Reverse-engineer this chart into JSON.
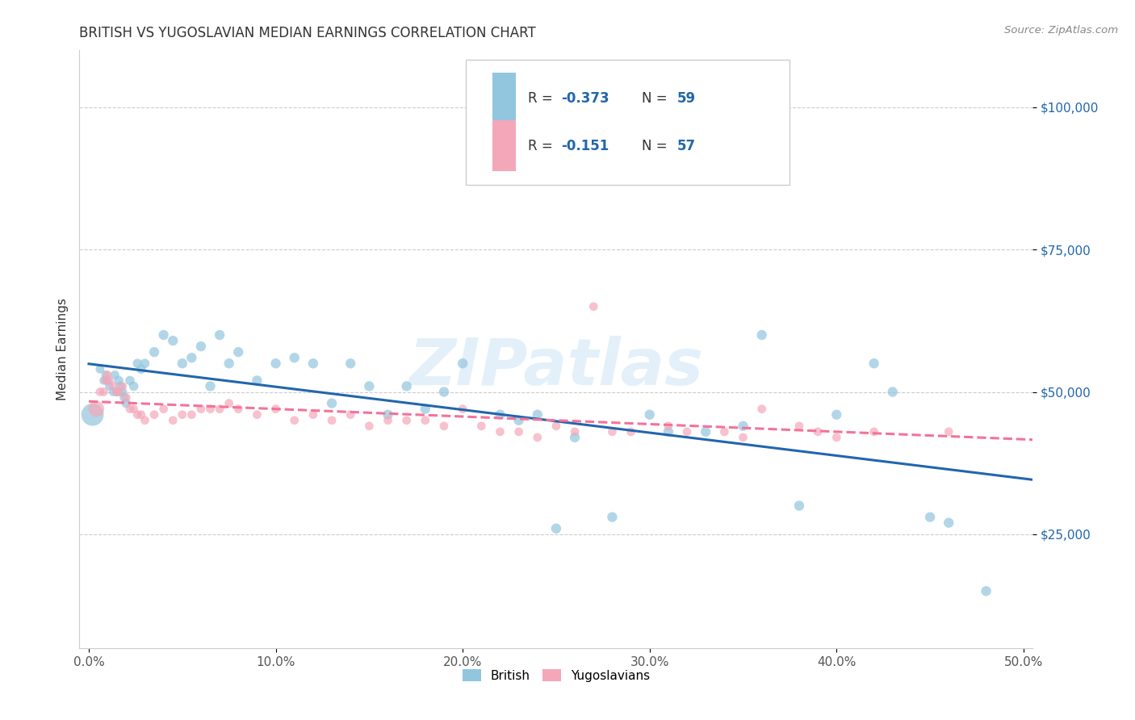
{
  "title": "BRITISH VS YUGOSLAVIAN MEDIAN EARNINGS CORRELATION CHART",
  "source": "Source: ZipAtlas.com",
  "ylabel": "Median Earnings",
  "xlim": [
    -0.005,
    0.505
  ],
  "ylim": [
    5000,
    110000
  ],
  "yticks": [
    25000,
    50000,
    75000,
    100000
  ],
  "ytick_labels": [
    "$25,000",
    "$50,000",
    "$75,000",
    "$100,000"
  ],
  "xticks": [
    0.0,
    0.1,
    0.2,
    0.3,
    0.4,
    0.5
  ],
  "xtick_labels": [
    "0.0%",
    "10.0%",
    "20.0%",
    "30.0%",
    "40.0%",
    "50.0%"
  ],
  "british_color": "#92c5de",
  "yugoslav_color": "#f4a7b9",
  "trend_blue": "#2166ac",
  "trend_pink": "#f4729a",
  "watermark": "ZIPatlas",
  "legend_R_british": "R = -0.373",
  "legend_N_british": "N = 59",
  "legend_R_yugoslav": "R = -0.151",
  "legend_N_yugoslav": "N = 57",
  "title_color": "#333333",
  "source_color": "#888888",
  "ylabel_color": "#333333",
  "ytick_color": "#2166ac",
  "xtick_color": "#555555",
  "british_x": [
    0.002,
    0.006,
    0.008,
    0.009,
    0.01,
    0.011,
    0.013,
    0.014,
    0.015,
    0.016,
    0.017,
    0.018,
    0.019,
    0.02,
    0.022,
    0.024,
    0.026,
    0.028,
    0.03,
    0.035,
    0.04,
    0.045,
    0.05,
    0.055,
    0.06,
    0.065,
    0.07,
    0.075,
    0.08,
    0.09,
    0.1,
    0.11,
    0.12,
    0.13,
    0.14,
    0.15,
    0.16,
    0.17,
    0.18,
    0.19,
    0.2,
    0.22,
    0.23,
    0.24,
    0.25,
    0.26,
    0.28,
    0.3,
    0.31,
    0.33,
    0.35,
    0.36,
    0.38,
    0.4,
    0.42,
    0.43,
    0.45,
    0.46,
    0.48
  ],
  "british_y": [
    46000,
    54000,
    52000,
    53000,
    52000,
    51000,
    50000,
    53000,
    50000,
    52000,
    51000,
    50000,
    49000,
    48000,
    52000,
    51000,
    55000,
    54000,
    55000,
    57000,
    60000,
    59000,
    55000,
    56000,
    58000,
    51000,
    60000,
    55000,
    57000,
    52000,
    55000,
    56000,
    55000,
    48000,
    55000,
    51000,
    46000,
    51000,
    47000,
    50000,
    55000,
    46000,
    45000,
    46000,
    26000,
    42000,
    28000,
    46000,
    43000,
    43000,
    44000,
    60000,
    30000,
    46000,
    55000,
    50000,
    28000,
    27000,
    15000
  ],
  "british_sizes": [
    400,
    60,
    60,
    60,
    60,
    60,
    60,
    60,
    70,
    70,
    70,
    70,
    70,
    70,
    70,
    70,
    70,
    70,
    70,
    80,
    80,
    80,
    80,
    80,
    80,
    80,
    80,
    80,
    80,
    80,
    80,
    80,
    80,
    80,
    80,
    80,
    80,
    80,
    80,
    80,
    80,
    80,
    80,
    80,
    80,
    80,
    80,
    80,
    80,
    80,
    80,
    80,
    80,
    80,
    80,
    80,
    80,
    80,
    80
  ],
  "yugoslav_x": [
    0.004,
    0.006,
    0.008,
    0.009,
    0.01,
    0.011,
    0.013,
    0.015,
    0.016,
    0.018,
    0.02,
    0.022,
    0.024,
    0.026,
    0.028,
    0.03,
    0.035,
    0.04,
    0.045,
    0.05,
    0.055,
    0.06,
    0.065,
    0.07,
    0.075,
    0.08,
    0.09,
    0.1,
    0.11,
    0.12,
    0.13,
    0.14,
    0.15,
    0.16,
    0.17,
    0.18,
    0.19,
    0.2,
    0.21,
    0.22,
    0.23,
    0.24,
    0.25,
    0.26,
    0.27,
    0.28,
    0.29,
    0.31,
    0.32,
    0.34,
    0.35,
    0.36,
    0.38,
    0.39,
    0.4,
    0.42,
    0.46
  ],
  "yugoslav_y": [
    47000,
    50000,
    50000,
    52000,
    53000,
    52000,
    51000,
    50000,
    50000,
    51000,
    49000,
    47000,
    47000,
    46000,
    46000,
    45000,
    46000,
    47000,
    45000,
    46000,
    46000,
    47000,
    47000,
    47000,
    48000,
    47000,
    46000,
    47000,
    45000,
    46000,
    45000,
    46000,
    44000,
    45000,
    45000,
    45000,
    44000,
    47000,
    44000,
    43000,
    43000,
    42000,
    44000,
    43000,
    65000,
    43000,
    43000,
    44000,
    43000,
    43000,
    42000,
    47000,
    44000,
    43000,
    42000,
    43000,
    43000
  ],
  "yugoslav_sizes": [
    200,
    60,
    60,
    60,
    60,
    60,
    60,
    60,
    60,
    60,
    60,
    60,
    60,
    60,
    60,
    60,
    60,
    60,
    60,
    60,
    60,
    60,
    60,
    60,
    60,
    60,
    60,
    60,
    60,
    60,
    60,
    60,
    60,
    60,
    60,
    60,
    60,
    60,
    60,
    60,
    60,
    60,
    60,
    60,
    60,
    60,
    60,
    60,
    60,
    60,
    60,
    60,
    60,
    60,
    60,
    60,
    60
  ]
}
